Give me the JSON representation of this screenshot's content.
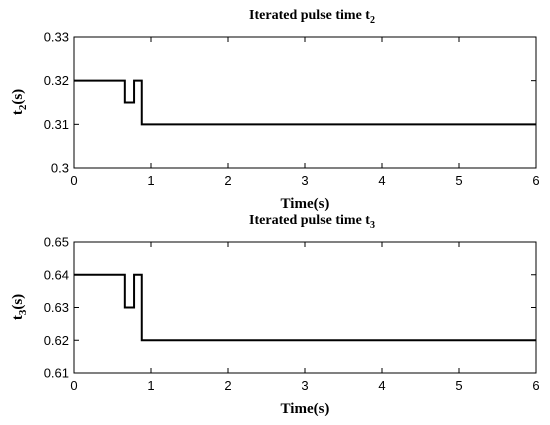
{
  "chart_data": [
    {
      "type": "line",
      "title": "Iterated pulse time t",
      "title_sub": "2",
      "xlabel": "Time(s)",
      "ylabel": "t",
      "ylabel_sub": "2",
      "ylabel_suffix": "(s)",
      "xlim": [
        0,
        6
      ],
      "ylim": [
        0.3,
        0.33
      ],
      "xticks": [
        0,
        1,
        2,
        3,
        4,
        5,
        6
      ],
      "xtick_labels": [
        "0",
        "1",
        "2",
        "3",
        "4",
        "5",
        "6"
      ],
      "yticks": [
        0.3,
        0.31,
        0.32,
        0.33
      ],
      "ytick_labels": [
        "0.3",
        "0.31",
        "0.32",
        "0.33"
      ],
      "grid": false,
      "series": [
        {
          "x": [
            0,
            0.66,
            0.66,
            0.78,
            0.78,
            0.88,
            0.88,
            6
          ],
          "y": [
            0.32,
            0.32,
            0.315,
            0.315,
            0.32,
            0.32,
            0.31,
            0.31
          ]
        }
      ]
    },
    {
      "type": "line",
      "title": "Iterated pulse time t",
      "title_sub": "3",
      "xlabel": "Time(s)",
      "ylabel": "t",
      "ylabel_sub": "3",
      "ylabel_suffix": "(s)",
      "xlim": [
        0,
        6
      ],
      "ylim": [
        0.61,
        0.65
      ],
      "xticks": [
        0,
        1,
        2,
        3,
        4,
        5,
        6
      ],
      "xtick_labels": [
        "0",
        "1",
        "2",
        "3",
        "4",
        "5",
        "6"
      ],
      "yticks": [
        0.61,
        0.62,
        0.63,
        0.64,
        0.65
      ],
      "ytick_labels": [
        "0.61",
        "0.62",
        "0.63",
        "0.64",
        "0.65"
      ],
      "grid": false,
      "series": [
        {
          "x": [
            0,
            0.66,
            0.66,
            0.78,
            0.78,
            0.88,
            0.88,
            6
          ],
          "y": [
            0.64,
            0.64,
            0.63,
            0.63,
            0.64,
            0.64,
            0.62,
            0.62
          ]
        }
      ]
    }
  ]
}
